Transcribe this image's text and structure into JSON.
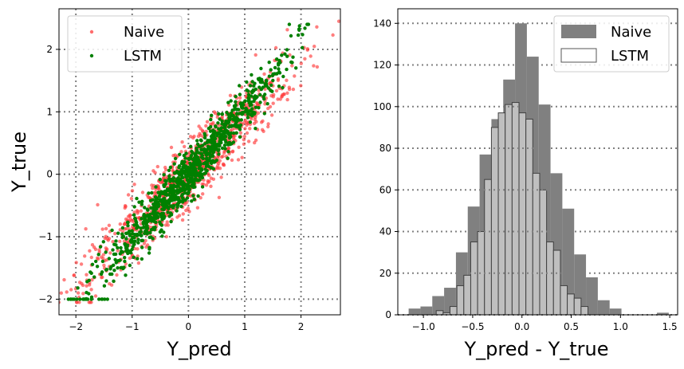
{
  "chart_data": [
    {
      "type": "scatter",
      "xlabel": "Y_pred",
      "ylabel": "Y_true",
      "xlim": [
        -2.3,
        2.7
      ],
      "ylim": [
        -2.25,
        2.65
      ],
      "xticks": [
        -2,
        -1,
        0,
        1,
        2
      ],
      "yticks": [
        -2,
        -1,
        0,
        1,
        2
      ],
      "xtick_labels": [
        "−2",
        "−1",
        "0",
        "1",
        "2"
      ],
      "ytick_labels": [
        "−2",
        "−1",
        "0",
        "1",
        "2"
      ],
      "grid": true,
      "legend_position": "top-left",
      "series": [
        {
          "name": "Naive",
          "color": "#ff3b3b",
          "approx_points": 1000,
          "x_range": [
            -2.0,
            2.45
          ],
          "relation": "y ≈ x",
          "spread": 0.28
        },
        {
          "name": "LSTM",
          "color": "#008000",
          "approx_points": 1000,
          "x_range": [
            -1.75,
            2.0
          ],
          "relation": "y ≈ 1.1x",
          "spread": 0.18
        }
      ]
    },
    {
      "type": "bar",
      "subtype": "histogram",
      "xlabel": "Y_pred - Y_true",
      "ylabel": "",
      "xlim": [
        -1.26,
        1.58
      ],
      "ylim": [
        0,
        147
      ],
      "xticks": [
        -1.0,
        -0.5,
        0.0,
        0.5,
        1.0,
        1.5
      ],
      "yticks": [
        0,
        20,
        40,
        60,
        80,
        100,
        120,
        140
      ],
      "xtick_labels": [
        "−1.0",
        "−0.5",
        "0.0",
        "0.5",
        "1.0",
        "1.5"
      ],
      "ytick_labels": [
        "0",
        "20",
        "40",
        "60",
        "80",
        "100",
        "120",
        "140"
      ],
      "grid": "y-only",
      "legend_position": "top-right",
      "series": [
        {
          "name": "Naive",
          "color": "#808080",
          "bin_edges": [
            -1.15,
            -1.03,
            -0.91,
            -0.79,
            -0.67,
            -0.55,
            -0.43,
            -0.31,
            -0.19,
            -0.07,
            0.05,
            0.17,
            0.29,
            0.41,
            0.53,
            0.65,
            0.77,
            0.89,
            1.01,
            1.13,
            1.25,
            1.37,
            1.49
          ],
          "counts": [
            3,
            4,
            9,
            13,
            30,
            52,
            77,
            94,
            113,
            140,
            124,
            101,
            68,
            51,
            29,
            18,
            7,
            3,
            0,
            0,
            0,
            1
          ]
        },
        {
          "name": "LSTM",
          "color": "#bfbfbf",
          "edgecolor": "#404040",
          "bin_edges": [
            -0.87,
            -0.8,
            -0.73,
            -0.66,
            -0.59,
            -0.52,
            -0.45,
            -0.38,
            -0.31,
            -0.24,
            -0.17,
            -0.1,
            -0.03,
            0.04,
            0.11,
            0.18,
            0.25,
            0.32,
            0.39,
            0.46,
            0.53,
            0.6,
            0.67,
            0.74
          ],
          "counts": [
            2,
            1,
            4,
            14,
            19,
            35,
            40,
            65,
            90,
            97,
            101,
            102,
            97,
            94,
            68,
            60,
            35,
            31,
            14,
            10,
            8,
            4,
            0
          ]
        }
      ]
    }
  ]
}
